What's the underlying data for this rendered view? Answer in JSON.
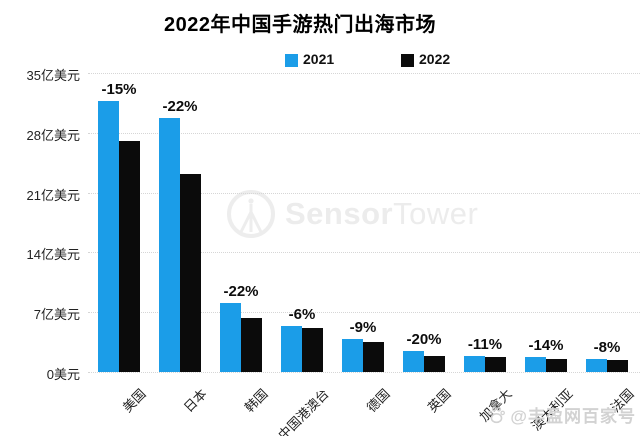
{
  "title": "2022年中国手游热门出海市场",
  "legend": {
    "items": [
      {
        "label": "2021",
        "color": "#1b9de8"
      },
      {
        "label": "2022",
        "color": "#0b0b0b"
      }
    ]
  },
  "watermarks": {
    "sensor_tower_bold": "Sensor",
    "sensor_tower_light": "Tower",
    "baijiahao_text": "@丰盈网百家号"
  },
  "chart_data": {
    "type": "bar",
    "title": "2022年中国手游热门出海市场",
    "unit": "亿美元",
    "categories": [
      "美国",
      "日本",
      "韩国",
      "中国港澳台",
      "德国",
      "英国",
      "加拿大",
      "澳大利亚",
      "法国"
    ],
    "series": [
      {
        "name": "2021",
        "color": "#1b9de8",
        "values": [
          31.7,
          29.7,
          8.1,
          5.4,
          3.9,
          2.4,
          1.9,
          1.8,
          1.5
        ]
      },
      {
        "name": "2022",
        "color": "#0b0b0b",
        "values": [
          27.0,
          23.2,
          6.3,
          5.1,
          3.5,
          1.9,
          1.7,
          1.5,
          1.4
        ]
      }
    ],
    "change_labels": [
      "-15%",
      "-22%",
      "-22%",
      "-6%",
      "-9%",
      "-20%",
      "-11%",
      "-14%",
      "-8%"
    ],
    "y_ticks": [
      {
        "value": 35,
        "label": "35亿美元"
      },
      {
        "value": 28,
        "label": "28亿美元"
      },
      {
        "value": 21,
        "label": "21亿美元"
      },
      {
        "value": 14,
        "label": "14亿美元"
      },
      {
        "value": 7,
        "label": "7亿美元"
      },
      {
        "value": 0,
        "label": "0美元"
      }
    ],
    "ylim": [
      0,
      35
    ],
    "xlabel": "",
    "ylabel": "",
    "grid": "horizontal-dotted",
    "legend_position": "top-center"
  }
}
